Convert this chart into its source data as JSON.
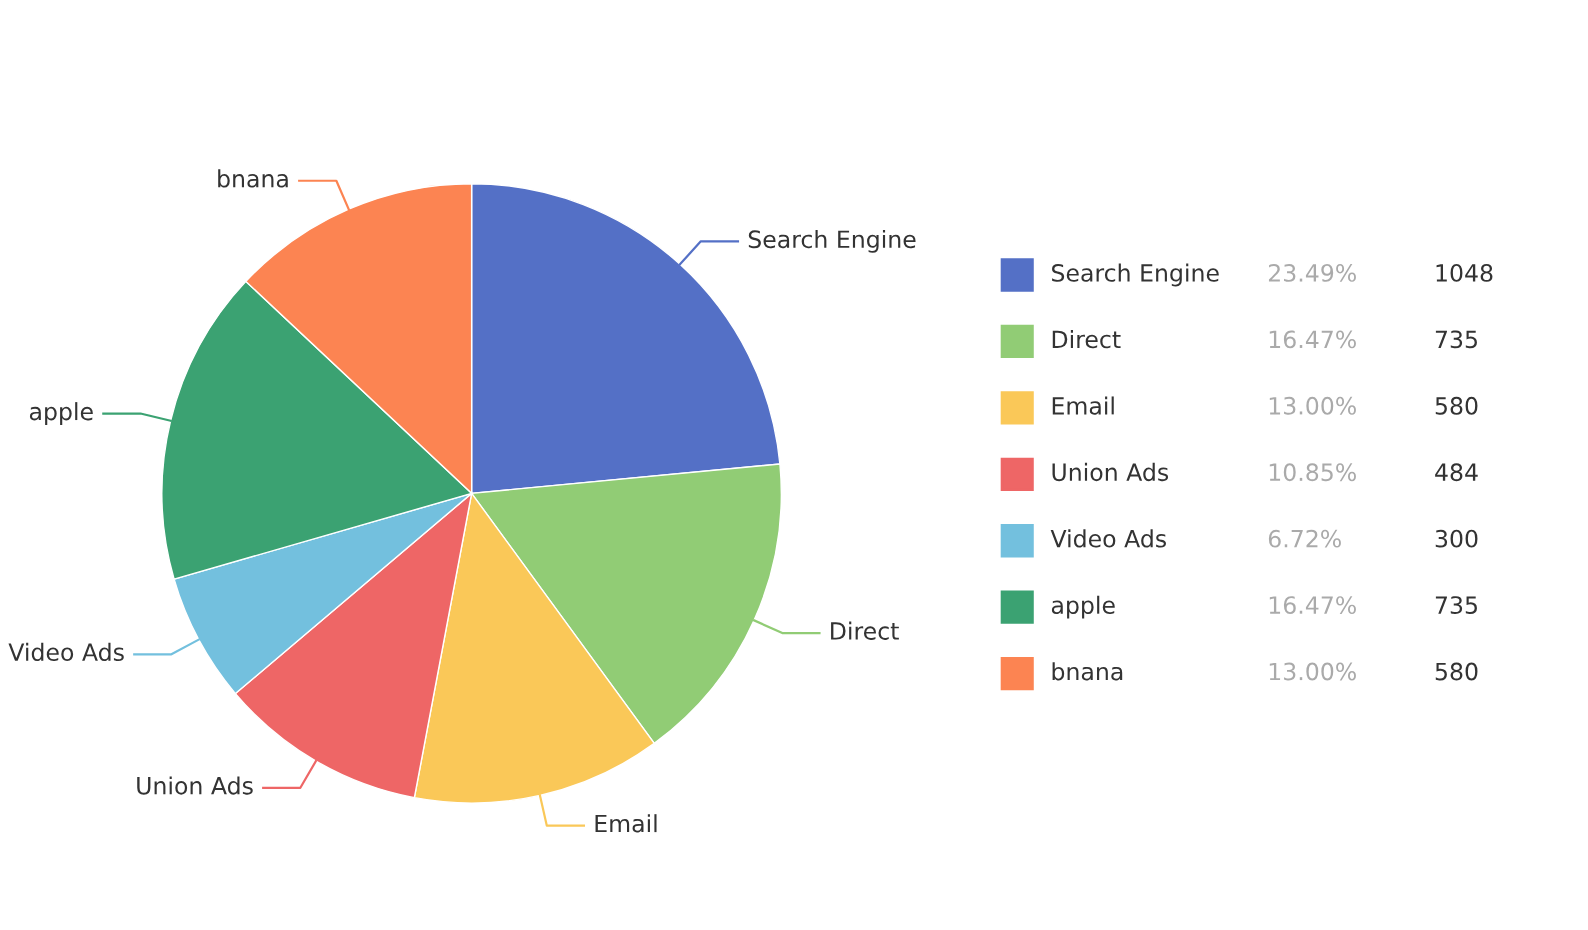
{
  "chart_data": {
    "type": "pie",
    "categories": [
      "Search Engine",
      "Direct",
      "Email",
      "Union Ads",
      "Video Ads",
      "apple",
      "bnana"
    ],
    "values": [
      23.49,
      16.47,
      13.0,
      10.85,
      6.72,
      16.47,
      13.0
    ],
    "annotations": [
      "1048",
      "735",
      "580",
      "484",
      "300",
      "735",
      "580"
    ],
    "colors": [
      "#5470c6",
      "#91cc75",
      "#fac858",
      "#ee6666",
      "#73c0de",
      "#3ba272",
      "#fc8452"
    ],
    "value_labels": [
      "23.49%",
      "16.47%",
      "13.00%",
      "10.85%",
      "6.72%",
      "16.47%",
      "13.00%"
    ],
    "legend": "right"
  }
}
